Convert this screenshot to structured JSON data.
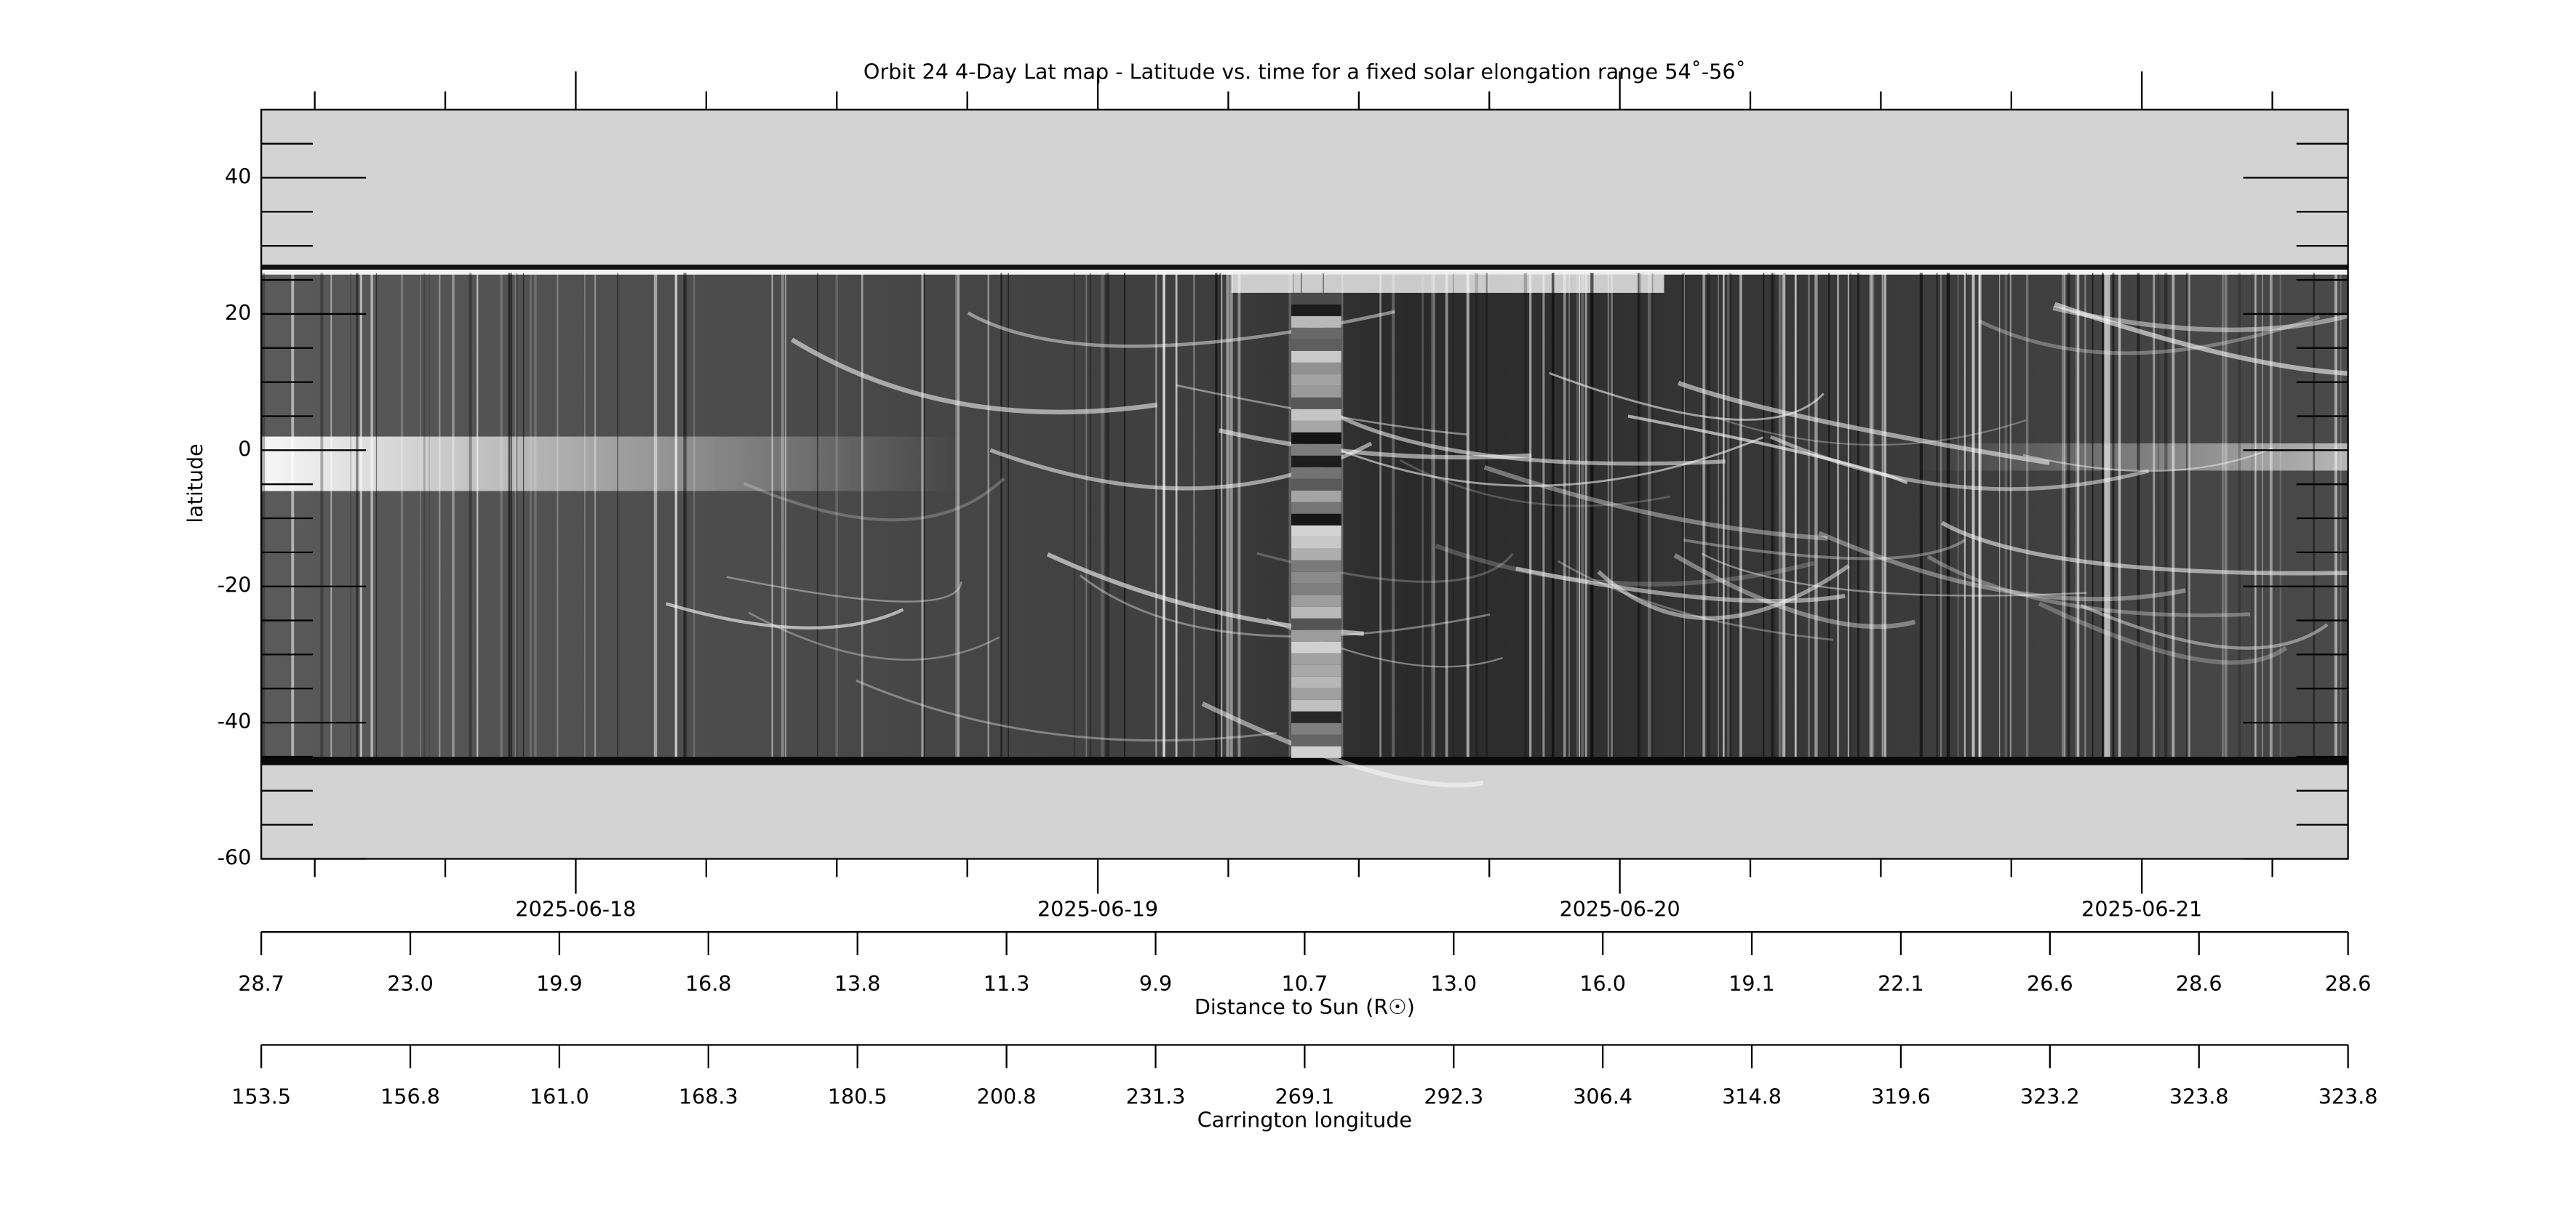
{
  "chart_data": {
    "type": "image",
    "title": "Orbit 24 4-Day Lat map - Latitude vs. time for a fixed solar elongation range 54˚-56˚",
    "ylabel": "latitude",
    "ylim": [
      -60,
      50
    ],
    "yticks": [
      -60,
      -40,
      -20,
      0,
      20,
      40
    ],
    "date_ticks": [
      "2025-06-18",
      "2025-06-19",
      "2025-06-20",
      "2025-06-21"
    ],
    "distance_axis": {
      "label": "Distance to Sun (R☉)",
      "ticks": [
        28.7,
        {
          "value": 23,
          "label": "23.0"
        },
        19.9,
        16.8,
        13.8,
        11.3,
        9.9,
        10.7,
        {
          "value": 13,
          "label": "13.0"
        },
        {
          "value": 16,
          "label": "16.0"
        },
        19.1,
        22.1,
        26.6,
        28.6,
        28.6
      ]
    },
    "carrington_axis": {
      "label": "Carrington longitude",
      "ticks": [
        153.5,
        156.8,
        {
          "value": 161,
          "label": "161.0"
        },
        168.3,
        180.5,
        200.8,
        231.3,
        269.1,
        292.3,
        306.4,
        314.8,
        319.6,
        323.2,
        323.8,
        323.8
      ]
    }
  }
}
